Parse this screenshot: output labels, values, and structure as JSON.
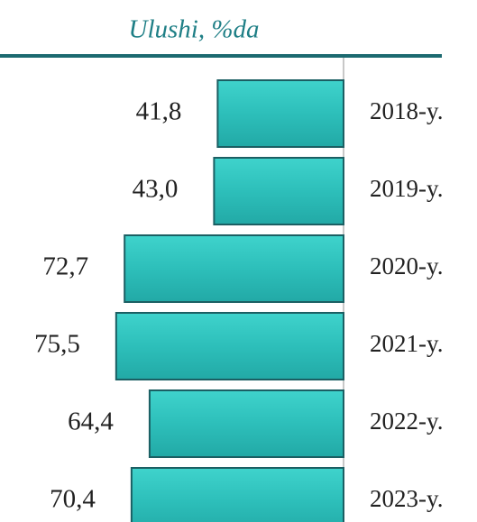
{
  "chart_data": {
    "type": "bar",
    "orientation": "horizontal",
    "title": "Ulushi, %da",
    "categories": [
      "2018-y.",
      "2019-y.",
      "2020-y.",
      "2021-y.",
      "2022-y.",
      "2023-y."
    ],
    "values": [
      41.8,
      43.0,
      72.7,
      75.5,
      64.4,
      70.4
    ],
    "value_labels": [
      "41,8",
      "43,0",
      "72,7",
      "75,5",
      "64,4",
      "70,4"
    ],
    "color": "#2dbfba"
  }
}
